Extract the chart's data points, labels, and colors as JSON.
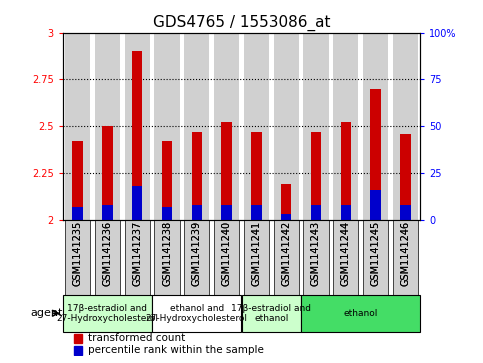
{
  "title": "GDS4765 / 1553086_at",
  "samples": [
    "GSM1141235",
    "GSM1141236",
    "GSM1141237",
    "GSM1141238",
    "GSM1141239",
    "GSM1141240",
    "GSM1141241",
    "GSM1141242",
    "GSM1141243",
    "GSM1141244",
    "GSM1141245",
    "GSM1141246"
  ],
  "red_values": [
    2.42,
    2.5,
    2.9,
    2.42,
    2.47,
    2.52,
    2.47,
    2.19,
    2.47,
    2.52,
    2.7,
    2.46
  ],
  "blue_values": [
    2.07,
    2.08,
    2.18,
    2.07,
    2.08,
    2.08,
    2.08,
    2.03,
    2.08,
    2.08,
    2.16,
    2.08
  ],
  "ymin": 2.0,
  "ymax": 3.0,
  "yticks": [
    2.0,
    2.25,
    2.5,
    2.75,
    3.0
  ],
  "ytick_labels": [
    "2",
    "2.25",
    "2.5",
    "2.75",
    "3"
  ],
  "y2ticks": [
    0,
    25,
    50,
    75,
    100
  ],
  "y2tick_labels": [
    "0",
    "25",
    "50",
    "75",
    "100%"
  ],
  "grid_values": [
    2.25,
    2.5,
    2.75
  ],
  "bar_width": 0.35,
  "red_color": "#cc0000",
  "blue_color": "#0000cc",
  "col_bg_color": "#d0d0d0",
  "agent_groups": [
    {
      "label": "17β-estradiol and\n27-Hydroxycholesterol",
      "start": 0,
      "end": 3,
      "color": "#ccffcc"
    },
    {
      "label": "ethanol and\n27-Hydroxycholesterol",
      "start": 3,
      "end": 6,
      "color": "#ffffff"
    },
    {
      "label": "17β-estradiol and\nethanol",
      "start": 6,
      "end": 8,
      "color": "#ccffcc"
    },
    {
      "label": "ethanol",
      "start": 8,
      "end": 12,
      "color": "#44dd66"
    }
  ],
  "legend_red": "transformed count",
  "legend_blue": "percentile rank within the sample",
  "agent_label": "agent",
  "title_fontsize": 11,
  "tick_fontsize": 7,
  "agent_fontsize": 6.5,
  "legend_fontsize": 7.5
}
